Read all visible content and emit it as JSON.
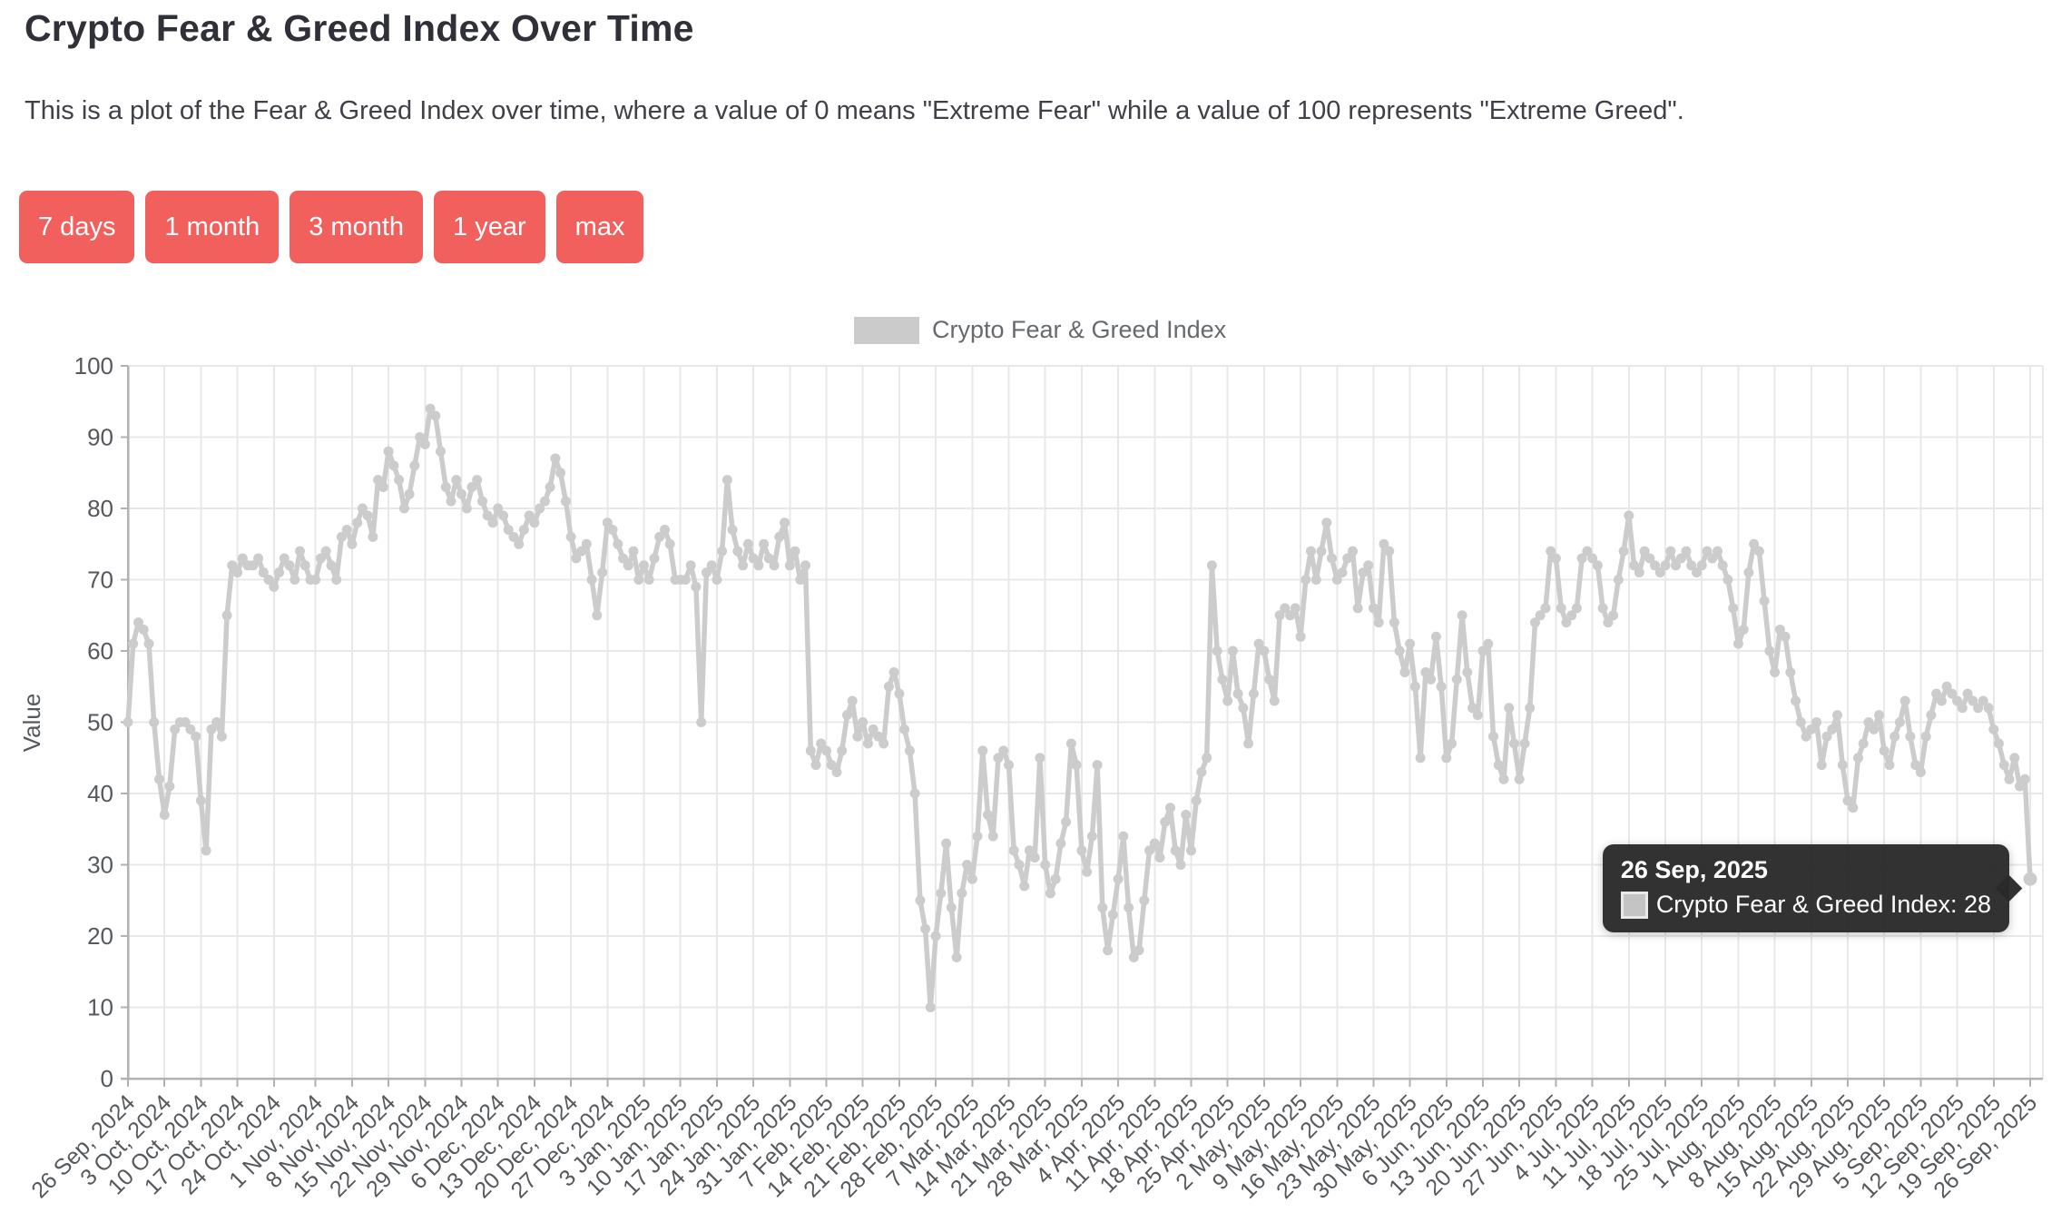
{
  "page": {
    "title": "Crypto Fear & Greed Index Over Time",
    "description": "This is a plot of the Fear & Greed Index over time, where a value of 0 means \"Extreme Fear\" while a value of 100 represents \"Extreme Greed\"."
  },
  "range_buttons": [
    "7 days",
    "1 month",
    "3 month",
    "1 year",
    "max"
  ],
  "legend": {
    "label": "Crypto Fear & Greed Index"
  },
  "tooltip": {
    "date": "26 Sep, 2025",
    "series": "Crypto Fear & Greed Index",
    "value": 28,
    "text": "Crypto Fear & Greed Index: 28"
  },
  "colors": {
    "accent": "#f2605e",
    "line": "#cccccc",
    "point": "#cccccc",
    "grid": "#e8e8e8",
    "axis": "#b2b2b2",
    "tick_text": "#55585c",
    "legend_text": "#666a6e",
    "legend_swatch": "#cbcbcb",
    "tooltip_bg": "#2a2a2a",
    "title_text": "#2f3038"
  },
  "chart_data": {
    "type": "line",
    "series_name": "Crypto Fear & Greed Index",
    "xlabel": "",
    "ylabel": "Value",
    "ylim": [
      0,
      100
    ],
    "ytick_step": 10,
    "grid": true,
    "legend_position": "top",
    "x_start": "26 Sep, 2024",
    "x_end": "26 Sep, 2025",
    "x_tick_labels": [
      "26 Sep, 2024",
      "3 Oct, 2024",
      "10 Oct, 2024",
      "17 Oct, 2024",
      "24 Oct, 2024",
      "1 Nov, 2024",
      "8 Nov, 2024",
      "15 Nov, 2024",
      "22 Nov, 2024",
      "29 Nov, 2024",
      "6 Dec, 2024",
      "13 Dec, 2024",
      "20 Dec, 2024",
      "27 Dec, 2024",
      "3 Jan, 2025",
      "10 Jan, 2025",
      "17 Jan, 2025",
      "24 Jan, 2025",
      "31 Jan, 2025",
      "7 Feb, 2025",
      "14 Feb, 2025",
      "21 Feb, 2025",
      "28 Feb, 2025",
      "7 Mar, 2025",
      "14 Mar, 2025",
      "21 Mar, 2025",
      "28 Mar, 2025",
      "4 Apr, 2025",
      "11 Apr, 2025",
      "18 Apr, 2025",
      "25 Apr, 2025",
      "2 May, 2025",
      "9 May, 2025",
      "16 May, 2025",
      "23 May, 2025",
      "30 May, 2025",
      "6 Jun, 2025",
      "13 Jun, 2025",
      "20 Jun, 2025",
      "27 Jun, 2025",
      "4 Jul, 2025",
      "11 Jul, 2025",
      "18 Jul, 2025",
      "25 Jul, 2025",
      "1 Aug, 2025",
      "8 Aug, 2025",
      "15 Aug, 2025",
      "22 Aug, 2025",
      "29 Aug, 2025",
      "5 Sep, 2025",
      "12 Sep, 2025",
      "19 Sep, 2025",
      "26 Sep, 2025"
    ],
    "x_tick_day_offsets": [
      0,
      7,
      14,
      21,
      28,
      36,
      43,
      50,
      57,
      64,
      71,
      78,
      85,
      92,
      99,
      106,
      113,
      120,
      127,
      134,
      141,
      148,
      155,
      162,
      169,
      176,
      183,
      190,
      197,
      204,
      211,
      218,
      225,
      232,
      239,
      246,
      253,
      260,
      267,
      274,
      281,
      288,
      295,
      302,
      309,
      316,
      323,
      330,
      337,
      344,
      351,
      358,
      365
    ],
    "total_days": 365,
    "values": [
      50,
      61,
      64,
      63,
      61,
      50,
      42,
      37,
      41,
      49,
      50,
      50,
      49,
      48,
      39,
      32,
      49,
      50,
      48,
      65,
      72,
      71,
      73,
      72,
      72,
      73,
      71,
      70,
      69,
      71,
      73,
      72,
      70,
      74,
      72,
      70,
      70,
      73,
      74,
      72,
      70,
      76,
      77,
      75,
      78,
      80,
      79,
      76,
      84,
      83,
      88,
      86,
      84,
      80,
      82,
      86,
      90,
      89,
      94,
      93,
      88,
      83,
      81,
      84,
      82,
      80,
      83,
      84,
      81,
      79,
      78,
      80,
      79,
      77,
      76,
      75,
      77,
      79,
      78,
      80,
      81,
      83,
      87,
      85,
      81,
      76,
      73,
      74,
      75,
      70,
      65,
      71,
      78,
      77,
      75,
      73,
      72,
      74,
      70,
      72,
      70,
      73,
      76,
      77,
      75,
      70,
      70,
      70,
      72,
      69,
      50,
      71,
      72,
      70,
      74,
      84,
      77,
      74,
      72,
      75,
      73,
      72,
      75,
      73,
      72,
      76,
      78,
      72,
      74,
      70,
      72,
      46,
      44,
      47,
      46,
      44,
      43,
      46,
      51,
      53,
      48,
      50,
      47,
      49,
      48,
      47,
      55,
      57,
      54,
      49,
      46,
      40,
      25,
      21,
      10,
      20,
      26,
      33,
      24,
      17,
      26,
      30,
      28,
      34,
      46,
      37,
      34,
      45,
      46,
      44,
      32,
      30,
      27,
      32,
      31,
      45,
      30,
      26,
      28,
      33,
      36,
      47,
      44,
      32,
      29,
      34,
      44,
      24,
      18,
      23,
      28,
      34,
      24,
      17,
      18,
      25,
      32,
      33,
      31,
      36,
      38,
      32,
      30,
      37,
      32,
      39,
      43,
      45,
      72,
      60,
      56,
      53,
      60,
      54,
      52,
      47,
      54,
      61,
      60,
      56,
      53,
      65,
      66,
      65,
      66,
      62,
      70,
      74,
      70,
      74,
      78,
      73,
      70,
      71,
      73,
      74,
      66,
      71,
      72,
      66,
      64,
      75,
      74,
      64,
      60,
      57,
      61,
      55,
      45,
      57,
      56,
      62,
      55,
      45,
      47,
      56,
      65,
      57,
      52,
      51,
      60,
      61,
      48,
      44,
      42,
      52,
      47,
      42,
      47,
      52,
      64,
      65,
      66,
      74,
      73,
      66,
      64,
      65,
      66,
      73,
      74,
      73,
      72,
      66,
      64,
      65,
      70,
      74,
      79,
      72,
      71,
      74,
      73,
      72,
      71,
      72,
      74,
      72,
      73,
      74,
      72,
      71,
      72,
      74,
      73,
      74,
      72,
      70,
      66,
      61,
      63,
      71,
      75,
      74,
      67,
      60,
      57,
      63,
      62,
      57,
      53,
      50,
      48,
      49,
      50,
      44,
      48,
      49,
      51,
      44,
      39,
      38,
      45,
      47,
      50,
      49,
      51,
      46,
      44,
      48,
      50,
      53,
      48,
      44,
      43,
      48,
      51,
      54,
      53,
      55,
      54,
      53,
      52,
      54,
      53,
      52,
      53,
      52,
      49,
      47,
      44,
      42,
      45,
      41,
      42,
      28
    ]
  }
}
